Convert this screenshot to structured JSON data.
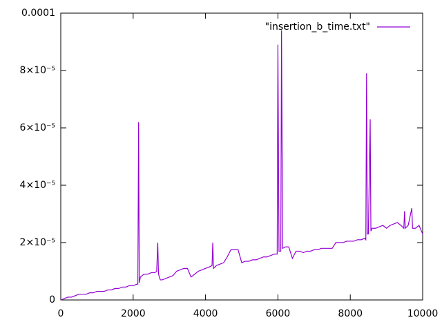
{
  "chart_data": {
    "type": "line",
    "x": [
      0,
      100,
      200,
      300,
      400,
      500,
      600,
      700,
      800,
      900,
      1000,
      1100,
      1200,
      1300,
      1400,
      1500,
      1600,
      1700,
      1800,
      1900,
      2000,
      2100,
      2130,
      2150,
      2170,
      2200,
      2300,
      2400,
      2500,
      2600,
      2650,
      2680,
      2700,
      2750,
      2800,
      2900,
      3000,
      3100,
      3200,
      3300,
      3400,
      3500,
      3600,
      3700,
      3800,
      3900,
      4000,
      4100,
      4180,
      4200,
      4220,
      4300,
      4400,
      4500,
      4600,
      4700,
      4800,
      4900,
      5000,
      5100,
      5200,
      5300,
      5400,
      5500,
      5600,
      5700,
      5800,
      5900,
      5980,
      6000,
      6030,
      6080,
      6100,
      6130,
      6200,
      6300,
      6400,
      6500,
      6600,
      6700,
      6800,
      6900,
      7000,
      7100,
      7200,
      7300,
      7400,
      7500,
      7600,
      7700,
      7800,
      7900,
      8000,
      8100,
      8200,
      8300,
      8400,
      8430,
      8450,
      8470,
      8500,
      8550,
      8570,
      8600,
      8700,
      8800,
      8900,
      9000,
      9100,
      9200,
      9300,
      9400,
      9480,
      9500,
      9520,
      9600,
      9700,
      9720,
      9800,
      9900,
      10000
    ],
    "series": [
      {
        "name": "\"insertion_b_time.txt\"",
        "color": "#9400d3",
        "values": [
          0,
          5e-07,
          1e-06,
          1e-06,
          1.5e-06,
          2e-06,
          2e-06,
          2e-06,
          2.5e-06,
          2.5e-06,
          3e-06,
          3e-06,
          3e-06,
          3.5e-06,
          3.5e-06,
          4e-06,
          4e-06,
          4.5e-06,
          4.5e-06,
          5e-06,
          5e-06,
          5.5e-06,
          5.5e-06,
          6.2e-05,
          6e-06,
          8e-06,
          9e-06,
          9e-06,
          9.5e-06,
          9.5e-06,
          1e-05,
          2e-05,
          9e-06,
          7e-06,
          7e-06,
          7.5e-06,
          8e-06,
          8.5e-06,
          1e-05,
          1.05e-05,
          1.1e-05,
          1.1e-05,
          8e-06,
          9e-06,
          1e-05,
          1.05e-05,
          1.1e-05,
          1.15e-05,
          1.2e-05,
          2e-05,
          1.1e-05,
          1.2e-05,
          1.25e-05,
          1.3e-05,
          1.5e-05,
          1.75e-05,
          1.75e-05,
          1.75e-05,
          1.3e-05,
          1.35e-05,
          1.35e-05,
          1.4e-05,
          1.4e-05,
          1.45e-05,
          1.5e-05,
          1.5e-05,
          1.55e-05,
          1.6e-05,
          1.6e-05,
          8.9e-05,
          1.7e-05,
          1.7e-05,
          9.4e-05,
          1.8e-05,
          1.85e-05,
          1.85e-05,
          1.45e-05,
          1.7e-05,
          1.7e-05,
          1.65e-05,
          1.7e-05,
          1.7e-05,
          1.75e-05,
          1.75e-05,
          1.8e-05,
          1.8e-05,
          1.8e-05,
          1.8e-05,
          2e-05,
          2e-05,
          2e-05,
          2.05e-05,
          2.05e-05,
          2.05e-05,
          2.1e-05,
          2.1e-05,
          2.15e-05,
          2.1e-05,
          7.9e-05,
          2.3e-05,
          2.3e-05,
          6.3e-05,
          2.4e-05,
          2.5e-05,
          2.5e-05,
          2.55e-05,
          2.6e-05,
          2.5e-05,
          2.6e-05,
          2.65e-05,
          2.7e-05,
          2.6e-05,
          2.5e-05,
          3.1e-05,
          2.5e-05,
          2.6e-05,
          3.2e-05,
          2.5e-05,
          2.5e-05,
          2.6e-05,
          2.3e-05
        ]
      }
    ],
    "xlim": [
      0,
      10000
    ],
    "xticks": [
      0,
      2000,
      4000,
      6000,
      8000,
      10000
    ],
    "ylim": [
      0,
      0.0001
    ],
    "yticks": [
      0,
      {
        "value": 2e-05,
        "label": "2×10⁻⁵"
      },
      {
        "value": 4e-05,
        "label": "4×10⁻⁵"
      },
      {
        "value": 6e-05,
        "label": "6×10⁻⁵"
      },
      {
        "value": 8e-05,
        "label": "8×10⁻⁵"
      },
      0.0001
    ],
    "legend": "top-right"
  }
}
